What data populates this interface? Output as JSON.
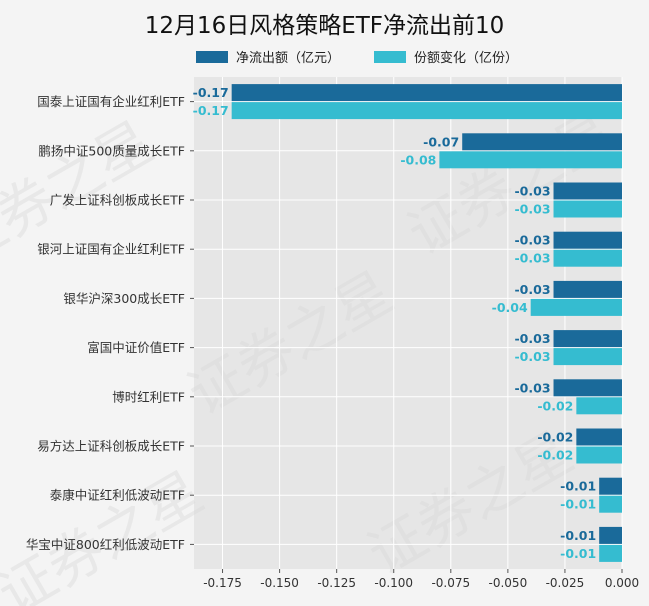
{
  "chart_data": {
    "type": "bar",
    "orientation": "horizontal",
    "title": "12月16日风格策略ETF净流出前10",
    "categories": [
      "国泰上证国有企业红利ETF",
      "鹏扬中证500质量成长ETF",
      "广发上证科创板成长ETF",
      "银河上证国有企业红利ETF",
      "银华沪深300成长ETF",
      "富国中证价值ETF",
      "博时红利ETF",
      "易方达上证科创板成长ETF",
      "泰康中证红利低波动ETF",
      "华宝中证800红利低波动ETF"
    ],
    "series": [
      {
        "name": "净流出额（亿元）",
        "color": "#1a6a9a",
        "values": [
          -0.171,
          -0.07,
          -0.03,
          -0.03,
          -0.03,
          -0.03,
          -0.03,
          -0.02,
          -0.01,
          -0.01
        ],
        "labels": [
          "-0.17",
          "-0.07",
          "-0.03",
          "-0.03",
          "-0.03",
          "-0.03",
          "-0.03",
          "-0.02",
          "-0.01",
          "-0.01"
        ]
      },
      {
        "name": "份额变化（亿份）",
        "color": "#35bcd0",
        "values": [
          -0.171,
          -0.08,
          -0.03,
          -0.03,
          -0.04,
          -0.03,
          -0.02,
          -0.02,
          -0.01,
          -0.01
        ],
        "labels": [
          "-0.17",
          "-0.08",
          "-0.03",
          "-0.03",
          "-0.04",
          "-0.03",
          "-0.02",
          "-0.02",
          "-0.01",
          "-0.01"
        ]
      }
    ],
    "xlim": [
      -0.1875,
      0.0
    ],
    "xticks": [
      "-0.175",
      "-0.150",
      "-0.125",
      "-0.100",
      "-0.075",
      "-0.050",
      "-0.025",
      "0.000"
    ],
    "xtick_values": [
      -0.175,
      -0.15,
      -0.125,
      -0.1,
      -0.075,
      -0.05,
      -0.025,
      0.0
    ],
    "grid": true,
    "legend": "top",
    "plot_background": "#e6e6e6",
    "watermark": "证券之星"
  }
}
